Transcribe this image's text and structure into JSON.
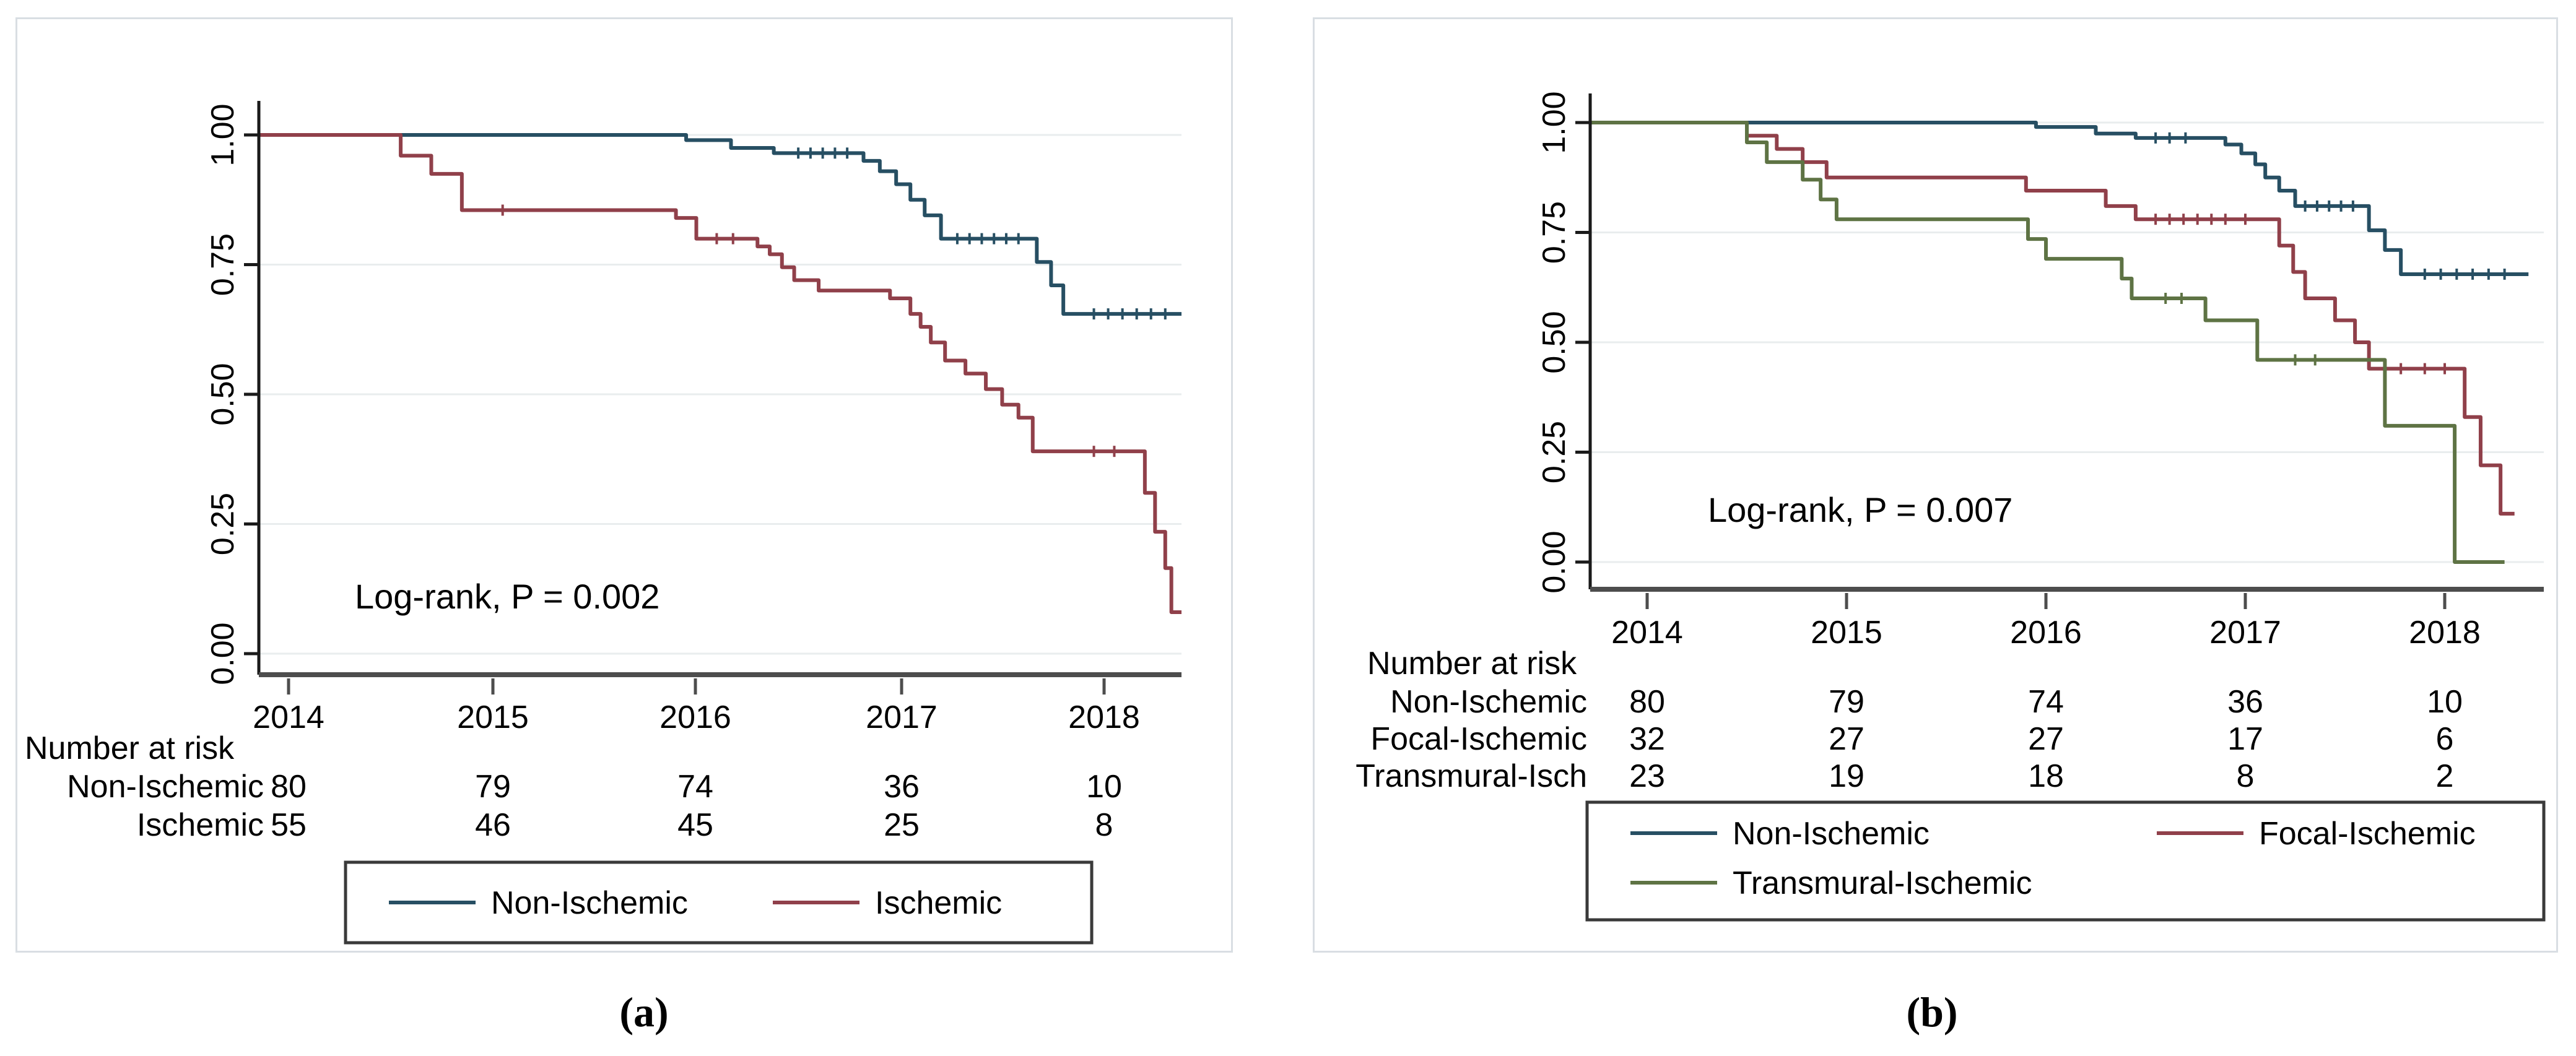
{
  "page": {
    "background": "#ffffff"
  },
  "panels": [
    {
      "caption": "(a)"
    },
    {
      "caption": "(b)"
    }
  ],
  "colors": {
    "non_ischemic": "#274f63",
    "ischemic": "#90404a",
    "focal_ischemic": "#90404a",
    "transmural_ischemic": "#5e7344",
    "gridline": "#e9edee",
    "x_axis": "#4d4d4d",
    "y_axis": "#1a1a1a",
    "text": "#000000",
    "figure_border": "#d9dee3",
    "legend_border": "#3a3a3a"
  },
  "chart_data": [
    {
      "type": "line",
      "subtype": "kaplan-meier-step",
      "title": "",
      "xlabel": "",
      "ylabel": "",
      "x_ticks": [
        "2014",
        "2015",
        "2016",
        "2017",
        "2018"
      ],
      "y_ticks": [
        "0.00",
        "0.25",
        "0.50",
        "0.75",
        "1.00"
      ],
      "xlim": [
        2013.85,
        2018.4
      ],
      "ylim": [
        0,
        1
      ],
      "grid": true,
      "legend_position": "bottom",
      "annotation": "Log-rank, P = 0.002",
      "series": [
        {
          "name": "Non-Ischemic",
          "color": "#274f63",
          "points": [
            [
              2013.85,
              1.0
            ],
            [
              2015.95,
              0.99
            ],
            [
              2016.17,
              0.975
            ],
            [
              2016.38,
              0.965
            ],
            [
              2016.82,
              0.95
            ],
            [
              2016.9,
              0.93
            ],
            [
              2016.98,
              0.905
            ],
            [
              2017.05,
              0.875
            ],
            [
              2017.12,
              0.845
            ],
            [
              2017.2,
              0.8
            ],
            [
              2017.67,
              0.755
            ],
            [
              2017.74,
              0.71
            ],
            [
              2017.8,
              0.655
            ],
            [
              2018.4,
              0.655
            ]
          ],
          "censor_ticks": [
            2016.5,
            2016.56,
            2016.62,
            2016.68,
            2016.74,
            2017.28,
            2017.34,
            2017.4,
            2017.46,
            2017.52,
            2017.58,
            2017.95,
            2018.02,
            2018.09,
            2018.16,
            2018.23,
            2018.3
          ]
        },
        {
          "name": "Ischemic",
          "color": "#90404a",
          "points": [
            [
              2013.85,
              1.0
            ],
            [
              2014.55,
              0.96
            ],
            [
              2014.7,
              0.925
            ],
            [
              2014.85,
              0.855
            ],
            [
              2015.9,
              0.84
            ],
            [
              2016.0,
              0.8
            ],
            [
              2016.3,
              0.785
            ],
            [
              2016.36,
              0.77
            ],
            [
              2016.42,
              0.745
            ],
            [
              2016.48,
              0.72
            ],
            [
              2016.6,
              0.7
            ],
            [
              2016.95,
              0.685
            ],
            [
              2017.05,
              0.655
            ],
            [
              2017.1,
              0.63
            ],
            [
              2017.15,
              0.6
            ],
            [
              2017.22,
              0.565
            ],
            [
              2017.32,
              0.54
            ],
            [
              2017.42,
              0.51
            ],
            [
              2017.5,
              0.48
            ],
            [
              2017.58,
              0.455
            ],
            [
              2017.65,
              0.39
            ],
            [
              2018.2,
              0.31
            ],
            [
              2018.25,
              0.235
            ],
            [
              2018.3,
              0.165
            ],
            [
              2018.33,
              0.08
            ],
            [
              2018.38,
              0.08
            ]
          ],
          "censor_ticks": [
            2015.05,
            2016.1,
            2016.18,
            2017.95,
            2018.05
          ]
        }
      ],
      "risk_table": {
        "title": "Number at risk",
        "columns": [
          "2014",
          "2015",
          "2016",
          "2017",
          "2018"
        ],
        "rows": [
          {
            "label": "Non-Ischemic",
            "values": [
              "80",
              "79",
              "74",
              "36",
              "10"
            ]
          },
          {
            "label": "Ischemic",
            "values": [
              "55",
              "46",
              "45",
              "25",
              "8"
            ]
          }
        ]
      },
      "legend": {
        "entries": [
          {
            "label": "Non-Ischemic",
            "color": "#274f63"
          },
          {
            "label": "Ischemic",
            "color": "#90404a"
          }
        ]
      }
    },
    {
      "type": "line",
      "subtype": "kaplan-meier-step",
      "title": "",
      "xlabel": "",
      "ylabel": "",
      "x_ticks": [
        "2014",
        "2015",
        "2016",
        "2017",
        "2018"
      ],
      "y_ticks": [
        "0.00",
        "0.25",
        "0.50",
        "0.75",
        "1.00"
      ],
      "xlim": [
        2013.71,
        2018.42
      ],
      "ylim": [
        0,
        1
      ],
      "grid": true,
      "legend_position": "bottom",
      "annotation": "Log-rank, P = 0.007",
      "series": [
        {
          "name": "Non-Ischemic",
          "color": "#274f63",
          "points": [
            [
              2013.71,
              1.0
            ],
            [
              2015.95,
              0.99
            ],
            [
              2016.25,
              0.975
            ],
            [
              2016.45,
              0.965
            ],
            [
              2016.9,
              0.95
            ],
            [
              2016.98,
              0.93
            ],
            [
              2017.05,
              0.905
            ],
            [
              2017.1,
              0.875
            ],
            [
              2017.17,
              0.845
            ],
            [
              2017.25,
              0.81
            ],
            [
              2017.62,
              0.755
            ],
            [
              2017.7,
              0.71
            ],
            [
              2017.78,
              0.655
            ],
            [
              2018.42,
              0.655
            ]
          ],
          "censor_ticks": [
            2016.55,
            2016.62,
            2016.7,
            2017.3,
            2017.36,
            2017.42,
            2017.48,
            2017.54,
            2017.9,
            2017.98,
            2018.06,
            2018.14,
            2018.22,
            2018.3
          ]
        },
        {
          "name": "Focal-Ischemic",
          "color": "#90404a",
          "points": [
            [
              2013.71,
              1.0
            ],
            [
              2014.5,
              0.97
            ],
            [
              2014.65,
              0.94
            ],
            [
              2014.78,
              0.91
            ],
            [
              2014.9,
              0.875
            ],
            [
              2015.9,
              0.845
            ],
            [
              2016.3,
              0.81
            ],
            [
              2016.45,
              0.78
            ],
            [
              2017.17,
              0.72
            ],
            [
              2017.24,
              0.66
            ],
            [
              2017.3,
              0.6
            ],
            [
              2017.45,
              0.55
            ],
            [
              2017.55,
              0.5
            ],
            [
              2017.62,
              0.44
            ],
            [
              2018.1,
              0.33
            ],
            [
              2018.18,
              0.22
            ],
            [
              2018.28,
              0.11
            ],
            [
              2018.35,
              0.11
            ]
          ],
          "censor_ticks": [
            2016.55,
            2016.62,
            2016.69,
            2016.76,
            2016.83,
            2016.9,
            2017.0,
            2017.78,
            2017.9,
            2018.0
          ]
        },
        {
          "name": "Transmural-Ischemic",
          "color": "#5e7344",
          "points": [
            [
              2013.71,
              1.0
            ],
            [
              2014.5,
              0.955
            ],
            [
              2014.6,
              0.91
            ],
            [
              2014.78,
              0.87
            ],
            [
              2014.87,
              0.825
            ],
            [
              2014.95,
              0.78
            ],
            [
              2015.91,
              0.735
            ],
            [
              2016.0,
              0.69
            ],
            [
              2016.38,
              0.645
            ],
            [
              2016.43,
              0.6
            ],
            [
              2016.8,
              0.55
            ],
            [
              2017.06,
              0.46
            ],
            [
              2017.7,
              0.31
            ],
            [
              2018.05,
              0.0
            ],
            [
              2018.3,
              0.0
            ]
          ],
          "censor_ticks": [
            2016.6,
            2016.68,
            2017.25,
            2017.35
          ]
        }
      ],
      "risk_table": {
        "title": "Number at risk",
        "columns": [
          "2014",
          "2015",
          "2016",
          "2017",
          "2018"
        ],
        "rows": [
          {
            "label": "Non-Ischemic",
            "values": [
              "80",
              "79",
              "74",
              "36",
              "10"
            ]
          },
          {
            "label": "Focal-Ischemic",
            "values": [
              "32",
              "27",
              "27",
              "17",
              "6"
            ]
          },
          {
            "label": "Transmural-Isch",
            "values": [
              "23",
              "19",
              "18",
              "8",
              "2"
            ]
          }
        ]
      },
      "legend": {
        "entries": [
          {
            "label": "Non-Ischemic",
            "color": "#274f63"
          },
          {
            "label": "Focal-Ischemic",
            "color": "#90404a"
          },
          {
            "label": "Transmural-Ischemic",
            "color": "#5e7344"
          }
        ]
      }
    }
  ]
}
